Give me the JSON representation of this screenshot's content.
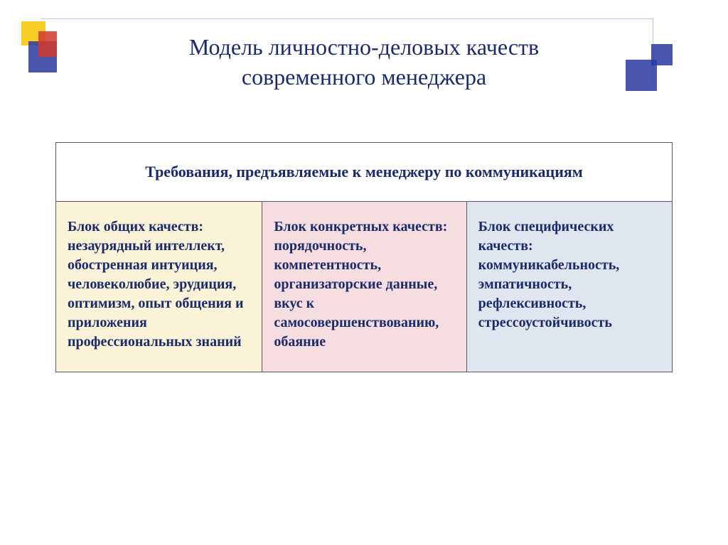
{
  "slide": {
    "title_line1": "Модель личностно-деловых качеств",
    "title_line2": "современного менеджера",
    "title_color": "#1a2a6c"
  },
  "decoration": {
    "yellow": "#f7c600",
    "red": "#d03a2a",
    "blue": "#2b3aa0",
    "line": "#b9c3e6"
  },
  "table": {
    "header": "Требования, предъявляемые к менеджеру по коммуникациям",
    "header_color": "#1a2a6c",
    "columns": [
      {
        "title": "Блок общих качеств:",
        "body": "незаурядный интеллект, обостренная интуиция, человеколюбие, эрудиция, оптимизм, опыт общения и приложения профессиональных знаний",
        "bg": "#fbf3d8",
        "title_color": "#1a2a6c",
        "body_color": "#1a2a6c"
      },
      {
        "title": "Блок конкретных качеств:",
        "body": "порядочность, компетентность, организаторские данные, вкус к самосовершенствованию, обаяние",
        "bg": "#f6dde0",
        "title_color": "#1a2a6c",
        "body_color": "#1a2a6c"
      },
      {
        "title": "Блок специфических качеств:",
        "body": "коммуникабельность, эмпатичность, рефлексивность, стрессоустойчивость",
        "bg": "#dfe6ef",
        "title_color": "#1a2a6c",
        "body_color": "#1a2a6c"
      }
    ]
  }
}
